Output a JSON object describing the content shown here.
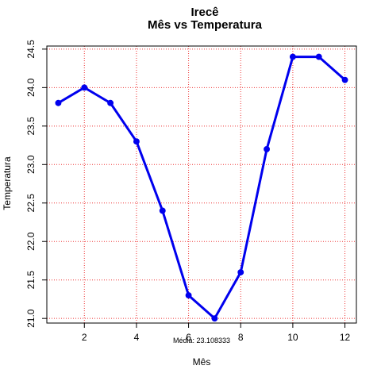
{
  "chart_data": {
    "type": "line",
    "title": "Irecê",
    "subtitle": "Mês vs Temperatura",
    "xlabel": "Mês",
    "ylabel": "Temperatura",
    "x": [
      1,
      2,
      3,
      4,
      5,
      6,
      7,
      8,
      9,
      10,
      11,
      12
    ],
    "series": [
      {
        "values": [
          23.8,
          24.0,
          23.8,
          23.3,
          22.4,
          21.3,
          21.0,
          21.6,
          23.2,
          24.4,
          24.4,
          24.1
        ]
      }
    ],
    "xticks": [
      2,
      4,
      6,
      8,
      10,
      12
    ],
    "xtick_labels": [
      "2",
      "4",
      "6",
      "8",
      "10",
      "12"
    ],
    "yticks": [
      21.0,
      21.5,
      22.0,
      22.5,
      23.0,
      23.5,
      24.0,
      24.5
    ],
    "ytick_labels": [
      "21.0",
      "21.5",
      "22.0",
      "22.5",
      "23.0",
      "23.5",
      "24.0",
      "24.5"
    ],
    "xlim": [
      0.56,
      12.44
    ],
    "ylim": [
      20.94,
      24.54
    ],
    "grid": true,
    "annotation": "Média: 23.108333",
    "colors": {
      "line": "#0000ee",
      "grid": "#ee3333",
      "axis": "#000000"
    }
  }
}
